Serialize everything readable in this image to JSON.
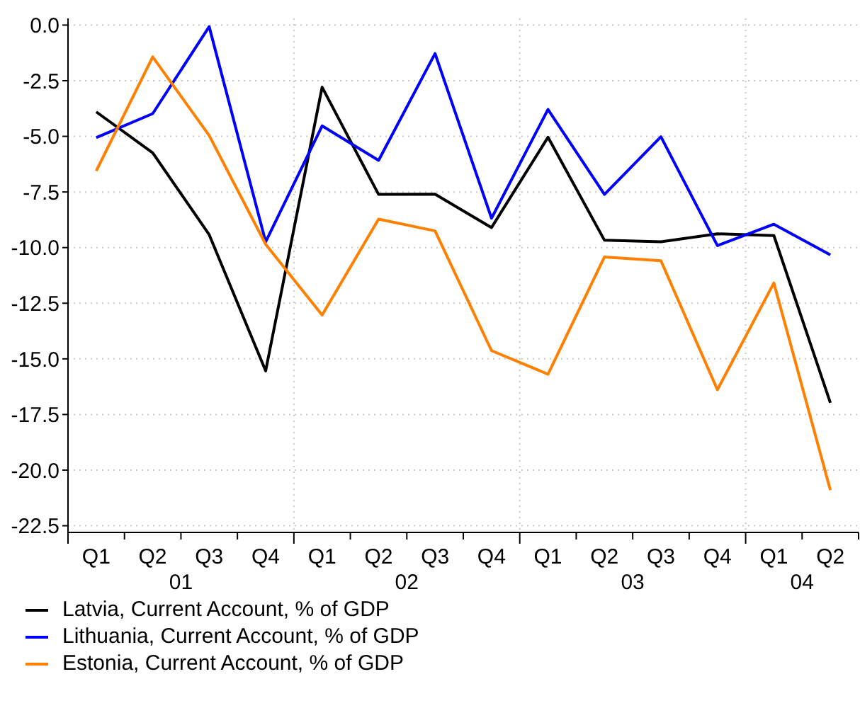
{
  "chart_data": {
    "type": "line",
    "categories": [
      "Q1",
      "Q2",
      "Q3",
      "Q4",
      "Q1",
      "Q2",
      "Q3",
      "Q4",
      "Q1",
      "Q2",
      "Q3",
      "Q4",
      "Q1",
      "Q2"
    ],
    "annotations": [
      "01",
      "02",
      "03",
      "04"
    ],
    "series": [
      {
        "name": "Latvia, Current Account, % of GDP",
        "color": "#000000",
        "values": [
          -3.9,
          -5.74,
          -9.42,
          -15.54,
          -2.79,
          -7.61,
          -7.6,
          -9.1,
          -5.04,
          -9.67,
          -9.74,
          -9.38,
          -9.46,
          -16.97
        ]
      },
      {
        "name": "Lithuania, Current Account, % of GDP",
        "color": "#0000ff",
        "values": [
          -5.06,
          -3.98,
          -0.07,
          -9.74,
          -4.53,
          -6.08,
          -1.28,
          -8.68,
          -3.79,
          -7.61,
          -5.02,
          -9.91,
          -8.95,
          -10.33
        ]
      },
      {
        "name": "Estonia, Current Account, % of GDP",
        "color": "#ff8000",
        "values": [
          -6.55,
          -1.43,
          -4.96,
          -9.85,
          -13.03,
          -8.72,
          -9.25,
          -14.63,
          -15.69,
          -10.42,
          -10.59,
          -16.39,
          -11.59,
          -20.9
        ]
      }
    ],
    "ylim": [
      -22.8,
      0.3
    ],
    "yticks": [
      {
        "value": 0,
        "label": "0.0"
      },
      {
        "value": -2.5,
        "label": "-2.5"
      },
      {
        "value": -5,
        "label": "-5.0"
      },
      {
        "value": -7.5,
        "label": "-7.5"
      },
      {
        "value": -10,
        "label": "-10.0"
      },
      {
        "value": -12.5,
        "label": "-12.5"
      },
      {
        "value": -15,
        "label": "-15.0"
      },
      {
        "value": -17.5,
        "label": "-17.5"
      },
      {
        "value": -20,
        "label": "-20.0"
      },
      {
        "value": -22.5,
        "label": "-22.5"
      }
    ],
    "grid": true,
    "legend": "bottom left",
    "marker": "none",
    "line_style": "solid"
  }
}
